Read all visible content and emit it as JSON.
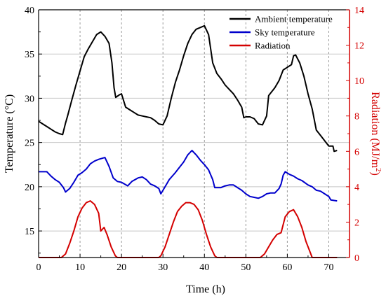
{
  "chart_data": {
    "type": "line",
    "xlabel": "Time (h)",
    "ylabel_left": "Temperature (°C)",
    "ylabel_right_text": "Radiation (MJ/m",
    "ylabel_right_sup": "2",
    "ylabel_right_close": ")",
    "xlim": [
      0,
      75
    ],
    "ylim_left": [
      12,
      40
    ],
    "ylim_right": [
      0,
      14
    ],
    "x_ticks": [
      "0",
      "10",
      "20",
      "30",
      "40",
      "50",
      "60",
      "70"
    ],
    "y_left_ticks": [
      "15",
      "20",
      "25",
      "30",
      "35",
      "40"
    ],
    "y_right_ticks": [
      "0",
      "2",
      "4",
      "6",
      "8",
      "10",
      "12",
      "14"
    ],
    "grid": "vertical dashed gridlines every 10 h; horizontal gridlines at left ticks",
    "legend_position": "top-right",
    "colors": {
      "ambient": "#000000",
      "sky": "#0000cc",
      "radiation": "#d40000",
      "right_axis": "#d40000"
    },
    "series": [
      {
        "name": "Ambient temperature",
        "axis": "left",
        "points": [
          [
            0,
            27.4
          ],
          [
            1,
            27.1
          ],
          [
            2,
            26.8
          ],
          [
            3,
            26.5
          ],
          [
            4,
            26.2
          ],
          [
            5,
            26.0
          ],
          [
            5.8,
            25.9
          ],
          [
            6.5,
            27.2
          ],
          [
            7,
            28.0
          ],
          [
            8,
            29.8
          ],
          [
            9,
            31.5
          ],
          [
            10,
            33.1
          ],
          [
            11,
            34.7
          ],
          [
            12,
            35.6
          ],
          [
            13,
            36.4
          ],
          [
            14,
            37.2
          ],
          [
            15,
            37.5
          ],
          [
            16,
            37.0
          ],
          [
            17,
            36.2
          ],
          [
            17.7,
            34.0
          ],
          [
            18.2,
            31.2
          ],
          [
            18.6,
            30.1
          ],
          [
            19.5,
            30.4
          ],
          [
            20,
            30.5
          ],
          [
            21,
            29.0
          ],
          [
            22,
            28.7
          ],
          [
            23,
            28.4
          ],
          [
            24,
            28.1
          ],
          [
            25,
            28.0
          ],
          [
            26,
            27.9
          ],
          [
            27,
            27.8
          ],
          [
            28,
            27.5
          ],
          [
            29,
            27.1
          ],
          [
            30,
            27.0
          ],
          [
            31,
            28.0
          ],
          [
            32,
            30.0
          ],
          [
            33,
            31.8
          ],
          [
            34,
            33.2
          ],
          [
            35,
            34.8
          ],
          [
            36,
            36.2
          ],
          [
            37,
            37.2
          ],
          [
            38,
            37.8
          ],
          [
            39,
            38.0
          ],
          [
            40,
            38.2
          ],
          [
            41,
            37.2
          ],
          [
            42,
            34.0
          ],
          [
            43,
            32.8
          ],
          [
            44,
            32.2
          ],
          [
            45,
            31.5
          ],
          [
            46,
            31.0
          ],
          [
            47,
            30.5
          ],
          [
            48,
            29.8
          ],
          [
            49,
            29.0
          ],
          [
            49.5,
            27.8
          ],
          [
            50,
            27.9
          ],
          [
            51,
            27.9
          ],
          [
            52,
            27.7
          ],
          [
            53,
            27.1
          ],
          [
            54,
            27.0
          ],
          [
            55,
            28.0
          ],
          [
            55.5,
            30.3
          ],
          [
            56,
            30.6
          ],
          [
            57,
            31.2
          ],
          [
            58,
            32.0
          ],
          [
            59,
            33.2
          ],
          [
            60,
            33.5
          ],
          [
            61,
            33.8
          ],
          [
            61.5,
            34.8
          ],
          [
            62,
            34.9
          ],
          [
            63,
            34.0
          ],
          [
            64,
            32.5
          ],
          [
            65,
            30.5
          ],
          [
            66,
            28.8
          ],
          [
            67,
            26.4
          ],
          [
            68,
            25.8
          ],
          [
            69,
            25.2
          ],
          [
            70,
            24.6
          ],
          [
            71,
            24.6
          ],
          [
            71.3,
            24.0
          ],
          [
            72,
            24.1
          ]
        ]
      },
      {
        "name": "Sky temperature",
        "axis": "left",
        "points": [
          [
            0,
            21.7
          ],
          [
            2,
            21.7
          ],
          [
            3,
            21.2
          ],
          [
            4,
            20.8
          ],
          [
            5,
            20.5
          ],
          [
            6,
            19.9
          ],
          [
            6.5,
            19.4
          ],
          [
            7.5,
            19.8
          ],
          [
            8.5,
            20.5
          ],
          [
            9.5,
            21.3
          ],
          [
            10.5,
            21.6
          ],
          [
            11.5,
            22.0
          ],
          [
            12.5,
            22.6
          ],
          [
            13.5,
            22.9
          ],
          [
            14.5,
            23.1
          ],
          [
            16,
            23.3
          ],
          [
            17,
            22.3
          ],
          [
            18,
            21.0
          ],
          [
            19,
            20.6
          ],
          [
            20,
            20.5
          ],
          [
            21.5,
            20.1
          ],
          [
            22.5,
            20.6
          ],
          [
            24,
            21.0
          ],
          [
            25,
            21.1
          ],
          [
            26,
            20.8
          ],
          [
            27,
            20.3
          ],
          [
            28,
            20.1
          ],
          [
            29,
            19.8
          ],
          [
            29.5,
            19.2
          ],
          [
            30.5,
            20.0
          ],
          [
            31.5,
            20.8
          ],
          [
            33,
            21.6
          ],
          [
            34,
            22.2
          ],
          [
            35,
            22.8
          ],
          [
            36,
            23.6
          ],
          [
            37,
            24.1
          ],
          [
            38,
            23.6
          ],
          [
            39,
            23.0
          ],
          [
            40,
            22.5
          ],
          [
            41,
            21.9
          ],
          [
            42,
            20.8
          ],
          [
            42.5,
            19.9
          ],
          [
            44,
            19.9
          ],
          [
            45,
            20.1
          ],
          [
            46,
            20.2
          ],
          [
            47,
            20.2
          ],
          [
            48,
            19.9
          ],
          [
            49,
            19.6
          ],
          [
            50,
            19.2
          ],
          [
            51,
            18.9
          ],
          [
            52,
            18.8
          ],
          [
            53,
            18.7
          ],
          [
            54,
            18.9
          ],
          [
            55,
            19.2
          ],
          [
            56,
            19.3
          ],
          [
            57,
            19.3
          ],
          [
            58,
            19.8
          ],
          [
            58.5,
            20.3
          ],
          [
            59,
            21.3
          ],
          [
            59.5,
            21.7
          ],
          [
            60.5,
            21.4
          ],
          [
            61.5,
            21.2
          ],
          [
            62.5,
            20.9
          ],
          [
            63.5,
            20.7
          ],
          [
            65,
            20.2
          ],
          [
            66,
            20.0
          ],
          [
            67,
            19.6
          ],
          [
            68,
            19.5
          ],
          [
            69,
            19.2
          ],
          [
            70,
            18.9
          ],
          [
            70.5,
            18.5
          ],
          [
            72,
            18.4
          ]
        ]
      },
      {
        "name": "Radiation",
        "axis": "right",
        "points": [
          [
            0,
            0
          ],
          [
            5.5,
            0
          ],
          [
            6.5,
            0.2
          ],
          [
            7.5,
            0.8
          ],
          [
            8.5,
            1.5
          ],
          [
            9.5,
            2.3
          ],
          [
            10.5,
            2.8
          ],
          [
            11.5,
            3.1
          ],
          [
            12.5,
            3.2
          ],
          [
            13.5,
            3.0
          ],
          [
            14.5,
            2.5
          ],
          [
            15,
            1.5
          ],
          [
            15.8,
            1.7
          ],
          [
            16.5,
            1.3
          ],
          [
            17.5,
            0.6
          ],
          [
            18.5,
            0.1
          ],
          [
            19,
            0
          ],
          [
            29,
            0
          ],
          [
            29.5,
            0.1
          ],
          [
            30.5,
            0.6
          ],
          [
            31.5,
            1.3
          ],
          [
            32.5,
            2.0
          ],
          [
            33.5,
            2.6
          ],
          [
            34.5,
            2.9
          ],
          [
            35.5,
            3.1
          ],
          [
            36.5,
            3.1
          ],
          [
            37.5,
            3.0
          ],
          [
            38.5,
            2.7
          ],
          [
            39.5,
            2.1
          ],
          [
            40.5,
            1.3
          ],
          [
            41.5,
            0.6
          ],
          [
            42.5,
            0.1
          ],
          [
            43,
            0
          ],
          [
            53.5,
            0
          ],
          [
            54.5,
            0.2
          ],
          [
            55.5,
            0.6
          ],
          [
            56.5,
            1.0
          ],
          [
            57.5,
            1.3
          ],
          [
            58.5,
            1.4
          ],
          [
            59.5,
            2.3
          ],
          [
            60.5,
            2.6
          ],
          [
            61.5,
            2.7
          ],
          [
            62.5,
            2.3
          ],
          [
            63.5,
            1.7
          ],
          [
            64.5,
            0.9
          ],
          [
            65.5,
            0.3
          ],
          [
            66,
            0
          ],
          [
            72,
            0
          ]
        ]
      }
    ]
  }
}
